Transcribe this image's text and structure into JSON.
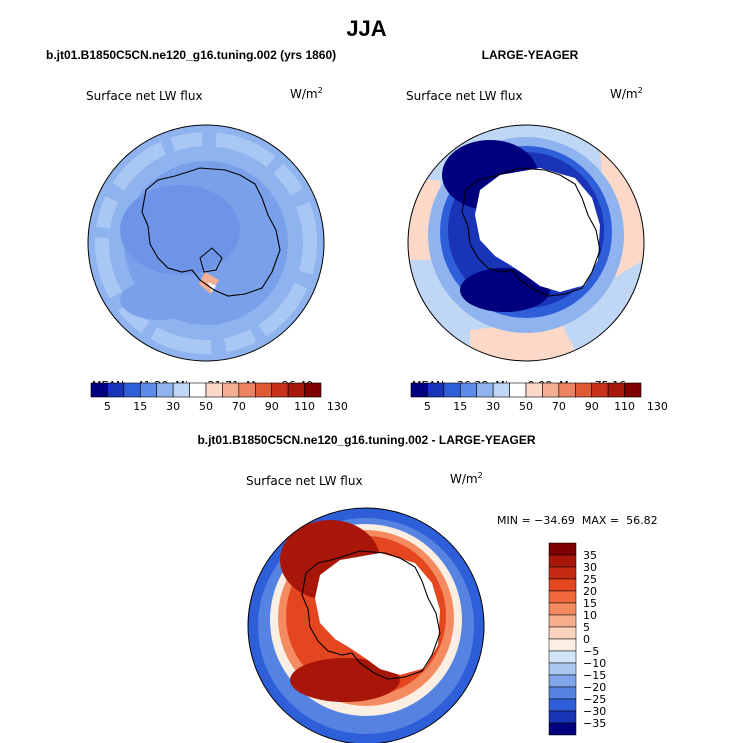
{
  "page": {
    "title": "JJA",
    "bottom_title": "b.jt01.B1850C5CN.ne120_g16.tuning.002 - LARGE-YEAGER"
  },
  "panels": [
    {
      "title": "b.jt01.B1850C5CN.ne120_g16.tuning.002 (yrs 1860)",
      "variable": "Surface net LW flux",
      "units": "W/m",
      "units_sup": "2",
      "stats": {
        "mean_label": "MEAN=",
        "mean": "41.20",
        "min_label": "Min=",
        "min": "21.71",
        "max_label": "Max=",
        "max": "96.40"
      }
    },
    {
      "title": "LARGE-YEAGER",
      "variable": "Surface net LW flux",
      "units": "W/m",
      "units_sup": "2",
      "stats": {
        "mean_label": "MEAN=",
        "mean": "36.38",
        "min_label": "Min=",
        "min": "0.00",
        "max_label": "Max=",
        "max": "75.16"
      }
    },
    {
      "variable": "Surface net LW flux",
      "units": "W/m",
      "units_sup": "2",
      "stats_text": "MIN = −34.69  MAX =  56.82"
    }
  ],
  "abs_colorbar": {
    "labels": [
      "5",
      "15",
      "30",
      "50",
      "70",
      "90",
      "110",
      "130"
    ],
    "colors": [
      "#00007f",
      "#1a34b8",
      "#2f5fd8",
      "#5e8ae8",
      "#8fb3ef",
      "#c0d6f5",
      "#ffffff",
      "#fbd8c8",
      "#f4ae92",
      "#ec8463",
      "#de5a36",
      "#c73119",
      "#a6190c",
      "#7f0000"
    ]
  },
  "diff_colorbar": {
    "labels": [
      "35",
      "30",
      "25",
      "20",
      "15",
      "10",
      "5",
      "0",
      "−5",
      "−10",
      "−15",
      "−20",
      "−25",
      "−30",
      "−35"
    ],
    "colors": [
      "#7f0000",
      "#a8160a",
      "#c52a12",
      "#e4471f",
      "#f0673a",
      "#f48a5f",
      "#f7ae8c",
      "#fbd3bd",
      "#fbeee3",
      "#d2e4f7",
      "#a9c7f0",
      "#7ea6e9",
      "#5683e2",
      "#2f5fd8",
      "#1a34b8",
      "#00007f"
    ]
  }
}
